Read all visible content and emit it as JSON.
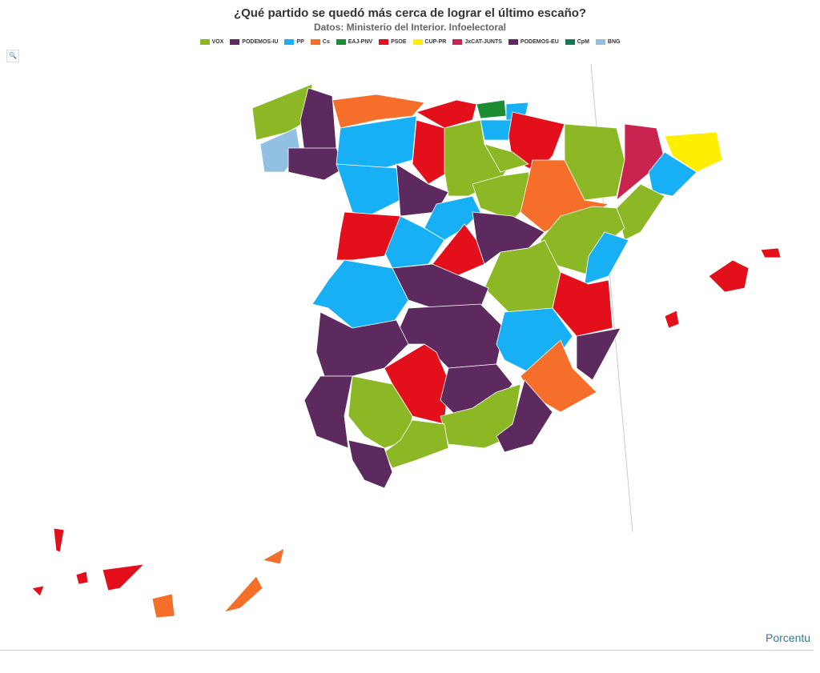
{
  "header": {
    "title": "¿Qué partido se quedó más cerca de lograr el último escaño?",
    "subtitle": "Datos: Ministerio del Interior. Infoelectoral"
  },
  "legend": [
    {
      "name": "VOX",
      "color": "#8cb825"
    },
    {
      "name": "PODEMOS-IU",
      "color": "#5c2a5e"
    },
    {
      "name": "PP",
      "color": "#17b0f5"
    },
    {
      "name": "Cs",
      "color": "#f56f2a"
    },
    {
      "name": "EAJ-PNV",
      "color": "#1e8c33"
    },
    {
      "name": "PSOE",
      "color": "#e3101c"
    },
    {
      "name": "CUP-PR",
      "color": "#ffee00"
    },
    {
      "name": "JxCAT-JUNTS",
      "color": "#c9244f"
    },
    {
      "name": "PODEMOS-EU",
      "color": "#5c2a5e"
    },
    {
      "name": "CpM",
      "color": "#107a55"
    },
    {
      "name": "BNG",
      "color": "#92c0e3"
    }
  ],
  "map": {
    "regions": [
      "VOX",
      "PODEMOS-IU",
      "BNG",
      "PODEMOS-IU",
      "Cs",
      "PSOE",
      "EAJ-PNV",
      "PP",
      "PP",
      "PSOE",
      "PP",
      "PSOE",
      "VOX",
      "VOX",
      "PP",
      "PODEMOS-IU",
      "VOX",
      "PP",
      "PP",
      "PSOE",
      "PSOE",
      "PODEMOS-IU",
      "VOX",
      "Cs",
      "JxCAT-JUNTS",
      "CUP-PR",
      "PP",
      "VOX",
      "VOX",
      "PP",
      "PSOE",
      "PODEMOS-EU",
      "VOX",
      "PP",
      "PODEMOS-IU",
      "PODEMOS-IU",
      "PP",
      "PODEMOS-IU",
      "Cs",
      "PSOE",
      "PODEMOS-IU",
      "PODEMOS-IU",
      "VOX",
      "VOX",
      "PODEMOS-IU",
      "VOX",
      "PODEMOS-IU",
      "PSOE",
      "PSOE",
      "PSOE",
      "PSOE",
      "PSOE",
      "PSOE",
      "PSOE",
      "Cs",
      "Cs",
      "Cs"
    ]
  },
  "footer": {
    "logo": "Porcentu"
  }
}
